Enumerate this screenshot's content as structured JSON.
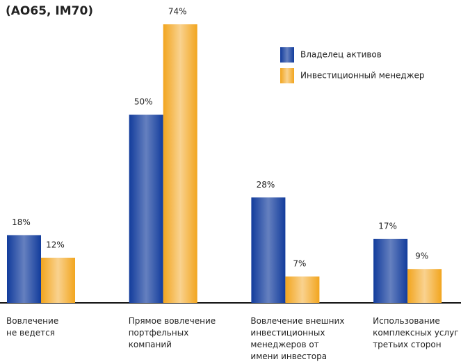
{
  "chart_data": {
    "type": "bar",
    "title": "(AO65, IM70)",
    "categories": [
      "Вовлечение\nне ведется",
      "Прямое вовлечение\nпортфельных\nкомпаний",
      "Вовлечение внешних\nинвестиционных\nменеджеров от\nимени инвестора",
      "Использование\nкомплексных услуг\nтретьих сторон"
    ],
    "series": [
      {
        "name": "Владелец активов",
        "color": "#123c9c",
        "values": [
          18,
          50,
          28,
          17
        ],
        "value_labels": [
          "18%",
          "50%",
          "28%",
          "17%"
        ]
      },
      {
        "name": "Инвестиционный менеджер",
        "color": "#f2a51e",
        "values": [
          12,
          74,
          7,
          9
        ],
        "value_labels": [
          "12%",
          "74%",
          "7%",
          "9%"
        ]
      }
    ]
  }
}
